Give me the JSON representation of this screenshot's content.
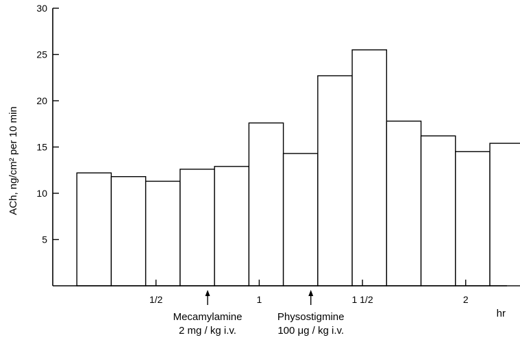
{
  "chart_data": {
    "type": "bar",
    "ylabel": "ACh,    ng/cm² per 10 min",
    "xlabel": "hr",
    "ylim": [
      0,
      30
    ],
    "xlim": [
      0,
      2.2
    ],
    "yticks": [
      5,
      10,
      15,
      20,
      25,
      30
    ],
    "xticks": [
      {
        "value": 0.5,
        "label": "1/2"
      },
      {
        "value": 1.0,
        "label": "1"
      },
      {
        "value": 1.5,
        "label": "1 1/2"
      },
      {
        "value": 2.0,
        "label": "2"
      }
    ],
    "bin_width_hr": 0.1667,
    "first_bin_start_hr": 0.1167,
    "values": [
      12.2,
      11.8,
      11.3,
      12.6,
      12.9,
      17.6,
      14.3,
      22.7,
      25.5,
      17.8,
      16.2,
      14.5,
      15.4
    ],
    "annotations": [
      {
        "x": 0.75,
        "lines": [
          "Mecamylamine",
          "2 mg / kg i.v."
        ]
      },
      {
        "x": 1.25,
        "lines": [
          "Physostigmine",
          "100 μg / kg i.v."
        ]
      }
    ]
  }
}
